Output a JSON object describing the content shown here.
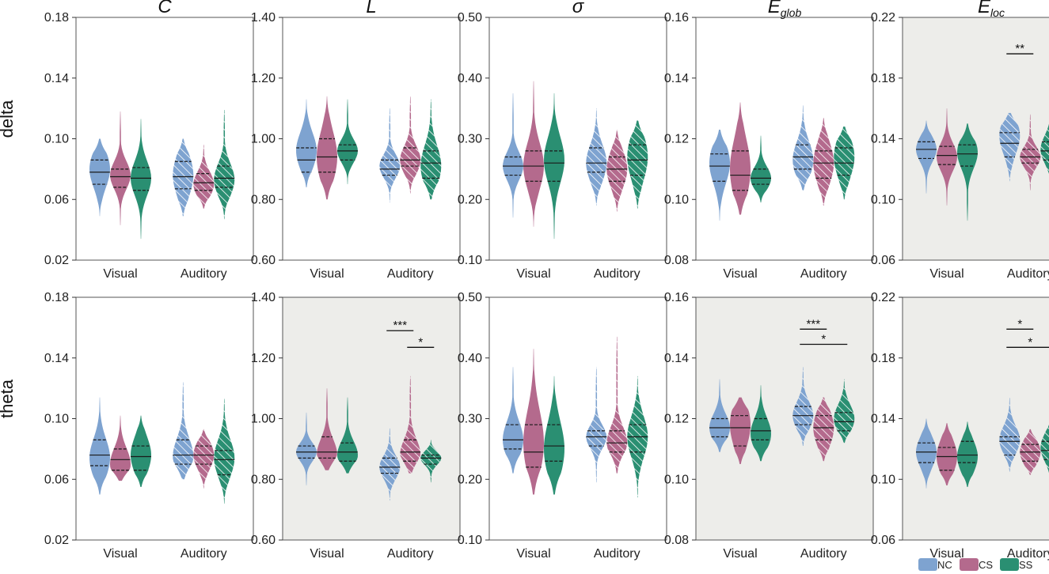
{
  "colors": {
    "NC": "#7ea3d0",
    "CS": "#b46a8d",
    "SS": "#2a8f72",
    "highlight_bg": "#ededea"
  },
  "legend": [
    {
      "key": "NC",
      "label": "NC"
    },
    {
      "key": "CS",
      "label": "CS"
    },
    {
      "key": "SS",
      "label": "SS"
    }
  ],
  "chart_data": {
    "type": "violin",
    "rows": [
      "delta",
      "theta"
    ],
    "groups": [
      "NC",
      "CS",
      "SS"
    ],
    "conditions": [
      "Visual",
      "Auditory"
    ],
    "columns": [
      {
        "key": "C",
        "title_main": "C",
        "title_sub": "",
        "ylim": [
          0.02,
          0.18
        ],
        "ticks": [
          "0.02",
          "0.06",
          "0.10",
          "0.14",
          "0.18"
        ]
      },
      {
        "key": "L",
        "title_main": "L",
        "title_sub": "",
        "ylim": [
          0.6,
          1.4
        ],
        "ticks": [
          "0.60",
          "0.80",
          "1.00",
          "1.20",
          "1.40"
        ]
      },
      {
        "key": "sigma",
        "title_main": "σ",
        "title_sub": "",
        "ylim": [
          0.1,
          0.5
        ],
        "ticks": [
          "0.10",
          "0.20",
          "0.30",
          "0.40",
          "0.50"
        ]
      },
      {
        "key": "Eglob",
        "title_main": "E",
        "title_sub": "glob",
        "ylim": [
          0.08,
          0.16
        ],
        "ticks": [
          "0.08",
          "0.10",
          "0.12",
          "0.14",
          "0.16"
        ]
      },
      {
        "key": "Eloc",
        "title_main": "E",
        "title_sub": "loc",
        "ylim": [
          0.06,
          0.22
        ],
        "ticks": [
          "0.06",
          "0.10",
          "0.14",
          "0.18",
          "0.22"
        ]
      }
    ],
    "panels": [
      {
        "row": "delta",
        "col": "C",
        "highlight": false,
        "sig": [],
        "violins": [
          {
            "cond": "Visual",
            "group": "NC",
            "min": 0.049,
            "q1": 0.07,
            "median": 0.078,
            "q3": 0.086,
            "max": 0.1,
            "peak": 0.08
          },
          {
            "cond": "Visual",
            "group": "CS",
            "min": 0.043,
            "q1": 0.068,
            "median": 0.075,
            "q3": 0.08,
            "max": 0.118,
            "peak": 0.076
          },
          {
            "cond": "Visual",
            "group": "SS",
            "min": 0.034,
            "q1": 0.066,
            "median": 0.074,
            "q3": 0.081,
            "max": 0.113,
            "peak": 0.074
          },
          {
            "cond": "Auditory",
            "group": "NC",
            "min": 0.049,
            "q1": 0.067,
            "median": 0.075,
            "q3": 0.085,
            "max": 0.1,
            "peak": 0.076
          },
          {
            "cond": "Auditory",
            "group": "CS",
            "min": 0.054,
            "q1": 0.066,
            "median": 0.071,
            "q3": 0.077,
            "max": 0.096,
            "peak": 0.07
          },
          {
            "cond": "Auditory",
            "group": "SS",
            "min": 0.047,
            "q1": 0.068,
            "median": 0.074,
            "q3": 0.082,
            "max": 0.119,
            "peak": 0.073
          }
        ]
      },
      {
        "row": "delta",
        "col": "L",
        "highlight": false,
        "sig": [],
        "violins": [
          {
            "cond": "Visual",
            "group": "NC",
            "min": 0.84,
            "q1": 0.89,
            "median": 0.93,
            "q3": 0.97,
            "max": 1.13,
            "peak": 0.96
          },
          {
            "cond": "Visual",
            "group": "CS",
            "min": 0.8,
            "q1": 0.89,
            "median": 0.94,
            "q3": 1.0,
            "max": 1.14,
            "peak": 0.94
          },
          {
            "cond": "Visual",
            "group": "SS",
            "min": 0.85,
            "q1": 0.93,
            "median": 0.96,
            "q3": 0.98,
            "max": 1.13,
            "peak": 0.96
          },
          {
            "cond": "Auditory",
            "group": "NC",
            "min": 0.79,
            "q1": 0.88,
            "median": 0.9,
            "q3": 0.93,
            "max": 1.1,
            "peak": 0.91
          },
          {
            "cond": "Auditory",
            "group": "CS",
            "min": 0.82,
            "q1": 0.91,
            "median": 0.93,
            "q3": 0.97,
            "max": 1.14,
            "peak": 0.93
          },
          {
            "cond": "Auditory",
            "group": "SS",
            "min": 0.8,
            "q1": 0.87,
            "median": 0.92,
            "q3": 0.96,
            "max": 1.13,
            "peak": 0.91
          }
        ]
      },
      {
        "row": "delta",
        "col": "sigma",
        "highlight": false,
        "sig": [],
        "violins": [
          {
            "cond": "Visual",
            "group": "NC",
            "min": 0.17,
            "q1": 0.24,
            "median": 0.255,
            "q3": 0.27,
            "max": 0.375,
            "peak": 0.255
          },
          {
            "cond": "Visual",
            "group": "CS",
            "min": 0.155,
            "q1": 0.23,
            "median": 0.255,
            "q3": 0.28,
            "max": 0.395,
            "peak": 0.255
          },
          {
            "cond": "Visual",
            "group": "SS",
            "min": 0.135,
            "q1": 0.23,
            "median": 0.26,
            "q3": 0.28,
            "max": 0.375,
            "peak": 0.265
          },
          {
            "cond": "Auditory",
            "group": "NC",
            "min": 0.19,
            "q1": 0.245,
            "median": 0.26,
            "q3": 0.285,
            "max": 0.35,
            "peak": 0.26
          },
          {
            "cond": "Auditory",
            "group": "CS",
            "min": 0.18,
            "q1": 0.23,
            "median": 0.25,
            "q3": 0.27,
            "max": 0.315,
            "peak": 0.25
          },
          {
            "cond": "Auditory",
            "group": "SS",
            "min": 0.185,
            "q1": 0.24,
            "median": 0.265,
            "q3": 0.29,
            "max": 0.33,
            "peak": 0.27
          }
        ]
      },
      {
        "row": "delta",
        "col": "Eglob",
        "highlight": false,
        "sig": [],
        "violins": [
          {
            "cond": "Visual",
            "group": "NC",
            "min": 0.093,
            "q1": 0.106,
            "median": 0.111,
            "q3": 0.115,
            "max": 0.123,
            "peak": 0.112
          },
          {
            "cond": "Visual",
            "group": "CS",
            "min": 0.095,
            "q1": 0.103,
            "median": 0.108,
            "q3": 0.116,
            "max": 0.132,
            "peak": 0.11
          },
          {
            "cond": "Visual",
            "group": "SS",
            "min": 0.099,
            "q1": 0.105,
            "median": 0.107,
            "q3": 0.11,
            "max": 0.121,
            "peak": 0.107
          },
          {
            "cond": "Auditory",
            "group": "NC",
            "min": 0.103,
            "q1": 0.11,
            "median": 0.114,
            "q3": 0.118,
            "max": 0.131,
            "peak": 0.113
          },
          {
            "cond": "Auditory",
            "group": "CS",
            "min": 0.098,
            "q1": 0.107,
            "median": 0.112,
            "q3": 0.116,
            "max": 0.127,
            "peak": 0.112
          },
          {
            "cond": "Auditory",
            "group": "SS",
            "min": 0.1,
            "q1": 0.108,
            "median": 0.112,
            "q3": 0.117,
            "max": 0.124,
            "peak": 0.114
          }
        ]
      },
      {
        "row": "delta",
        "col": "Eloc",
        "highlight": true,
        "sig": [
          {
            "label": "**",
            "from": "NC",
            "to": "CS",
            "y": 0.196
          }
        ],
        "violins": [
          {
            "cond": "Visual",
            "group": "NC",
            "min": 0.104,
            "q1": 0.127,
            "median": 0.133,
            "q3": 0.138,
            "max": 0.152,
            "peak": 0.133
          },
          {
            "cond": "Visual",
            "group": "CS",
            "min": 0.096,
            "q1": 0.123,
            "median": 0.129,
            "q3": 0.135,
            "max": 0.16,
            "peak": 0.128
          },
          {
            "cond": "Visual",
            "group": "SS",
            "min": 0.086,
            "q1": 0.122,
            "median": 0.13,
            "q3": 0.136,
            "max": 0.15,
            "peak": 0.131
          },
          {
            "cond": "Auditory",
            "group": "NC",
            "min": 0.112,
            "q1": 0.128,
            "median": 0.137,
            "q3": 0.144,
            "max": 0.157,
            "peak": 0.142
          },
          {
            "cond": "Auditory",
            "group": "CS",
            "min": 0.106,
            "q1": 0.124,
            "median": 0.128,
            "q3": 0.133,
            "max": 0.156,
            "peak": 0.128
          },
          {
            "cond": "Auditory",
            "group": "SS",
            "min": 0.107,
            "q1": 0.126,
            "median": 0.132,
            "q3": 0.138,
            "max": 0.172,
            "peak": 0.133
          }
        ]
      },
      {
        "row": "theta",
        "col": "C",
        "highlight": false,
        "sig": [],
        "violins": [
          {
            "cond": "Visual",
            "group": "NC",
            "min": 0.05,
            "q1": 0.069,
            "median": 0.076,
            "q3": 0.086,
            "max": 0.114,
            "peak": 0.074
          },
          {
            "cond": "Visual",
            "group": "CS",
            "min": 0.059,
            "q1": 0.066,
            "median": 0.073,
            "q3": 0.08,
            "max": 0.102,
            "peak": 0.07
          },
          {
            "cond": "Visual",
            "group": "SS",
            "min": 0.055,
            "q1": 0.066,
            "median": 0.075,
            "q3": 0.082,
            "max": 0.102,
            "peak": 0.076
          },
          {
            "cond": "Auditory",
            "group": "NC",
            "min": 0.06,
            "q1": 0.07,
            "median": 0.076,
            "q3": 0.086,
            "max": 0.124,
            "peak": 0.075
          },
          {
            "cond": "Auditory",
            "group": "CS",
            "min": 0.054,
            "q1": 0.07,
            "median": 0.076,
            "q3": 0.082,
            "max": 0.093,
            "peak": 0.076
          },
          {
            "cond": "Auditory",
            "group": "SS",
            "min": 0.044,
            "q1": 0.063,
            "median": 0.073,
            "q3": 0.079,
            "max": 0.113,
            "peak": 0.074
          }
        ]
      },
      {
        "row": "theta",
        "col": "L",
        "highlight": true,
        "sig": [
          {
            "label": "***",
            "from": "NC",
            "to": "CS",
            "y": 1.29
          },
          {
            "label": "*",
            "from": "CS",
            "to": "SS",
            "y": 1.235
          }
        ],
        "violins": [
          {
            "cond": "Visual",
            "group": "NC",
            "min": 0.78,
            "q1": 0.87,
            "median": 0.89,
            "q3": 0.91,
            "max": 1.02,
            "peak": 0.89
          },
          {
            "cond": "Visual",
            "group": "CS",
            "min": 0.83,
            "q1": 0.87,
            "median": 0.89,
            "q3": 0.94,
            "max": 1.1,
            "peak": 0.88
          },
          {
            "cond": "Visual",
            "group": "SS",
            "min": 0.82,
            "q1": 0.86,
            "median": 0.89,
            "q3": 0.92,
            "max": 1.07,
            "peak": 0.88
          },
          {
            "cond": "Auditory",
            "group": "NC",
            "min": 0.73,
            "q1": 0.82,
            "median": 0.84,
            "q3": 0.87,
            "max": 0.97,
            "peak": 0.84
          },
          {
            "cond": "Auditory",
            "group": "CS",
            "min": 0.82,
            "q1": 0.86,
            "median": 0.89,
            "q3": 0.93,
            "max": 1.14,
            "peak": 0.88
          },
          {
            "cond": "Auditory",
            "group": "SS",
            "min": 0.79,
            "q1": 0.85,
            "median": 0.87,
            "q3": 0.88,
            "max": 0.93,
            "peak": 0.87
          }
        ]
      },
      {
        "row": "theta",
        "col": "sigma",
        "highlight": false,
        "sig": [],
        "violins": [
          {
            "cond": "Visual",
            "group": "NC",
            "min": 0.21,
            "q1": 0.25,
            "median": 0.265,
            "q3": 0.29,
            "max": 0.385,
            "peak": 0.265
          },
          {
            "cond": "Visual",
            "group": "CS",
            "min": 0.175,
            "q1": 0.22,
            "median": 0.245,
            "q3": 0.29,
            "max": 0.415,
            "peak": 0.26
          },
          {
            "cond": "Visual",
            "group": "SS",
            "min": 0.175,
            "q1": 0.23,
            "median": 0.255,
            "q3": 0.29,
            "max": 0.37,
            "peak": 0.25
          },
          {
            "cond": "Auditory",
            "group": "NC",
            "min": 0.195,
            "q1": 0.255,
            "median": 0.27,
            "q3": 0.28,
            "max": 0.385,
            "peak": 0.27
          },
          {
            "cond": "Auditory",
            "group": "CS",
            "min": 0.21,
            "q1": 0.245,
            "median": 0.26,
            "q3": 0.28,
            "max": 0.435,
            "peak": 0.26
          },
          {
            "cond": "Auditory",
            "group": "SS",
            "min": 0.17,
            "q1": 0.245,
            "median": 0.27,
            "q3": 0.29,
            "max": 0.37,
            "peak": 0.27
          }
        ]
      },
      {
        "row": "theta",
        "col": "Eglob",
        "highlight": true,
        "sig": [
          {
            "label": "***",
            "from": "NC",
            "to": "CS",
            "y": 0.1495
          },
          {
            "label": "*",
            "from": "NC",
            "to": "SS",
            "y": 0.1445
          }
        ],
        "violins": [
          {
            "cond": "Visual",
            "group": "NC",
            "min": 0.109,
            "q1": 0.114,
            "median": 0.117,
            "q3": 0.12,
            "max": 0.133,
            "peak": 0.117
          },
          {
            "cond": "Visual",
            "group": "CS",
            "min": 0.105,
            "q1": 0.111,
            "median": 0.117,
            "q3": 0.121,
            "max": 0.127,
            "peak": 0.118
          },
          {
            "cond": "Visual",
            "group": "SS",
            "min": 0.106,
            "q1": 0.113,
            "median": 0.116,
            "q3": 0.12,
            "max": 0.131,
            "peak": 0.115
          },
          {
            "cond": "Auditory",
            "group": "NC",
            "min": 0.111,
            "q1": 0.118,
            "median": 0.121,
            "q3": 0.124,
            "max": 0.137,
            "peak": 0.121
          },
          {
            "cond": "Auditory",
            "group": "CS",
            "min": 0.106,
            "q1": 0.113,
            "median": 0.117,
            "q3": 0.121,
            "max": 0.127,
            "peak": 0.117
          },
          {
            "cond": "Auditory",
            "group": "SS",
            "min": 0.112,
            "q1": 0.116,
            "median": 0.119,
            "q3": 0.122,
            "max": 0.133,
            "peak": 0.12
          }
        ]
      },
      {
        "row": "theta",
        "col": "Eloc",
        "highlight": true,
        "sig": [
          {
            "label": "*",
            "from": "NC",
            "to": "CS",
            "y": 0.199
          },
          {
            "label": "*",
            "from": "NC",
            "to": "SS",
            "y": 0.187
          }
        ],
        "violins": [
          {
            "cond": "Visual",
            "group": "NC",
            "min": 0.094,
            "q1": 0.111,
            "median": 0.118,
            "q3": 0.124,
            "max": 0.14,
            "peak": 0.118
          },
          {
            "cond": "Visual",
            "group": "CS",
            "min": 0.096,
            "q1": 0.106,
            "median": 0.115,
            "q3": 0.121,
            "max": 0.137,
            "peak": 0.115
          },
          {
            "cond": "Visual",
            "group": "SS",
            "min": 0.095,
            "q1": 0.111,
            "median": 0.116,
            "q3": 0.125,
            "max": 0.138,
            "peak": 0.115
          },
          {
            "cond": "Auditory",
            "group": "NC",
            "min": 0.105,
            "q1": 0.116,
            "median": 0.125,
            "q3": 0.128,
            "max": 0.154,
            "peak": 0.126
          },
          {
            "cond": "Auditory",
            "group": "CS",
            "min": 0.103,
            "q1": 0.112,
            "median": 0.118,
            "q3": 0.123,
            "max": 0.133,
            "peak": 0.118
          },
          {
            "cond": "Auditory",
            "group": "SS",
            "min": 0.089,
            "q1": 0.113,
            "median": 0.119,
            "q3": 0.125,
            "max": 0.142,
            "peak": 0.121
          }
        ]
      }
    ]
  }
}
